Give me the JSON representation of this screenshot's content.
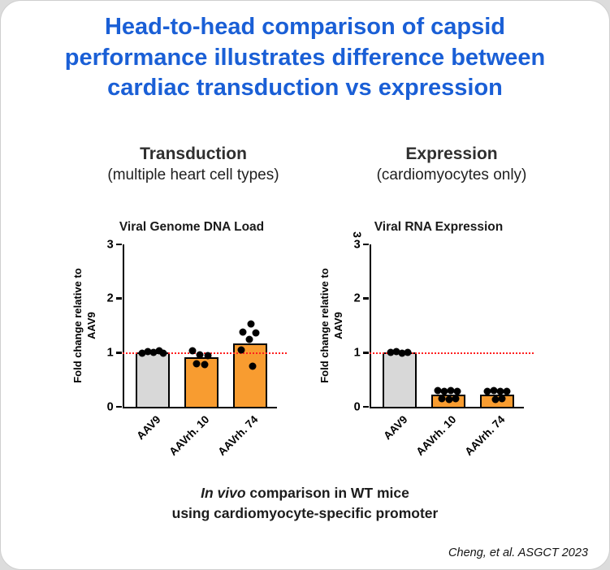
{
  "slide": {
    "title_lines": [
      "Head-to-head comparison of capsid",
      "performance illustrates difference between",
      "cardiac transduction vs expression"
    ],
    "caption": {
      "italic_part": "In vivo",
      "line1_rest": " comparison in WT mice",
      "line2": "using cardiomyocyte-specific promoter"
    },
    "citation": "Cheng, et al. ASGCT 2023"
  },
  "columns": [
    {
      "heading": "Transduction",
      "subheading": "(multiple heart cell types)"
    },
    {
      "heading": "Expression",
      "subheading": "(cardiomyocytes only)"
    }
  ],
  "colors": {
    "title_blue": "#1a5fd6",
    "bar_gray": "#d8d8d8",
    "bar_orange": "#f89c30",
    "ref_line_red": "#ff1f1f",
    "axis_black": "#000000"
  },
  "chart_data": [
    {
      "type": "bar",
      "title": "Viral Genome DNA Load",
      "ylabel_line1": "Fold change relative to",
      "ylabel_line2": "AAV9",
      "ylim": [
        0,
        3
      ],
      "yticks": [
        0,
        1,
        2,
        3
      ],
      "reference_line_y": 1,
      "grid": false,
      "categories": [
        "AAV9",
        "AAVrh. 10",
        "AAVrh. 74"
      ],
      "values": [
        1.0,
        0.92,
        1.17
      ],
      "bar_colors": [
        "#d8d8d8",
        "#f89c30",
        "#f89c30"
      ],
      "points": [
        [
          {
            "dx": -13,
            "y": 0.99
          },
          {
            "dx": -6,
            "y": 1.02
          },
          {
            "dx": 1,
            "y": 1.0
          },
          {
            "dx": 8,
            "y": 1.03
          },
          {
            "dx": 13,
            "y": 0.99
          }
        ],
        [
          {
            "dx": -11,
            "y": 1.04
          },
          {
            "dx": -2,
            "y": 0.96
          },
          {
            "dx": 8,
            "y": 0.95
          },
          {
            "dx": -6,
            "y": 0.8
          },
          {
            "dx": 4,
            "y": 0.78
          }
        ],
        [
          {
            "dx": 1,
            "y": 1.53
          },
          {
            "dx": -9,
            "y": 1.38
          },
          {
            "dx": 7,
            "y": 1.36
          },
          {
            "dx": -1,
            "y": 1.25
          },
          {
            "dx": -11,
            "y": 1.05
          },
          {
            "dx": 3,
            "y": 0.75
          }
        ]
      ]
    },
    {
      "type": "bar",
      "title": "Viral RNA Expression",
      "ylabel_line1": "Fold change relative to",
      "ylabel_line2": "AAV9",
      "ylim": [
        0,
        3
      ],
      "yticks": [
        0,
        1,
        2,
        3
      ],
      "ytick_artifact": "3",
      "reference_line_y": 1,
      "grid": false,
      "categories": [
        "AAV9",
        "AAVrh. 10",
        "AAVrh. 74"
      ],
      "values": [
        1.0,
        0.23,
        0.22
      ],
      "bar_colors": [
        "#d8d8d8",
        "#f89c30",
        "#f89c30"
      ],
      "points": [
        [
          {
            "dx": -11,
            "y": 1.0
          },
          {
            "dx": -4,
            "y": 1.02
          },
          {
            "dx": 3,
            "y": 0.99
          },
          {
            "dx": 10,
            "y": 1.01
          }
        ],
        [
          {
            "dx": -13,
            "y": 0.3
          },
          {
            "dx": -5,
            "y": 0.29
          },
          {
            "dx": 3,
            "y": 0.3
          },
          {
            "dx": 11,
            "y": 0.28
          },
          {
            "dx": -8,
            "y": 0.15
          },
          {
            "dx": 1,
            "y": 0.14
          },
          {
            "dx": 9,
            "y": 0.15
          }
        ],
        [
          {
            "dx": -12,
            "y": 0.29
          },
          {
            "dx": -4,
            "y": 0.3
          },
          {
            "dx": 4,
            "y": 0.28
          },
          {
            "dx": 12,
            "y": 0.29
          },
          {
            "dx": -2,
            "y": 0.14
          },
          {
            "dx": 6,
            "y": 0.15
          }
        ]
      ]
    }
  ]
}
